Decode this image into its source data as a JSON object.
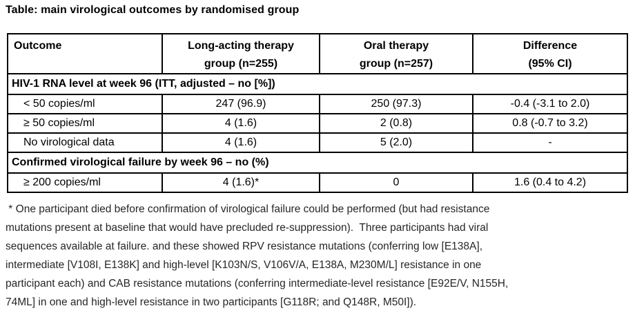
{
  "title": "Table: main virological outcomes by randomised group",
  "table": {
    "columns": [
      "Outcome",
      "Long-acting therapy\ngroup (n=255)",
      "Oral therapy\ngroup (n=257)",
      "Difference\n(95% CI)"
    ],
    "sections": [
      {
        "header": "HIV-1 RNA level at week 96 (ITT, adjusted – no [%])",
        "rows": [
          {
            "outcome": "< 50 copies/ml",
            "long_acting": "247 (96.9)",
            "oral": "250 (97.3)",
            "difference": "-0.4 (-3.1 to 2.0)"
          },
          {
            "outcome": "≥ 50 copies/ml",
            "long_acting": "4 (1.6)",
            "oral": "2 (0.8)",
            "difference": "0.8 (-0.7 to 3.2)"
          },
          {
            "outcome": "No virological data",
            "long_acting": "4 (1.6)",
            "oral": "5 (2.0)",
            "difference": "-"
          }
        ]
      },
      {
        "header": "Confirmed virological failure by week 96 – no (%)",
        "rows": [
          {
            "outcome": "≥ 200 copies/ml",
            "long_acting": "4 (1.6)*",
            "oral": "0",
            "difference": "1.6 (0.4 to 4.2)"
          }
        ]
      }
    ]
  },
  "footnote": {
    "lines": [
      " * One participant died before confirmation of virological failure could be performed (but had resistance",
      "mutations present at baseline that would have precluded re-suppression).  Three participants had viral",
      "sequences available at failure. and these showed RPV resistance mutations (conferring low [E138A],",
      "intermediate [V108I, E138K] and high-level [K103N/S, V106V/A, E138A, M230M/L] resistance in one",
      "participant each) and CAB resistance mutations (conferring intermediate-level resistance [E92E/V, N155H,",
      "74ML] in one and high-level resistance in two participants [G118R; and Q148R, M50I])."
    ]
  },
  "colors": {
    "background": "#ffffff",
    "border": "#000000",
    "text": "#000000",
    "footnote_text": "#262626"
  }
}
